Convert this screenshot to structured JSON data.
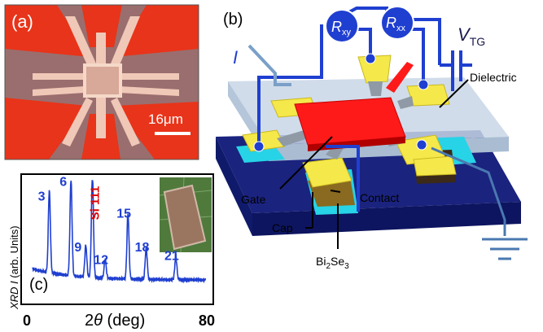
{
  "panel_a": {
    "label": "(a)",
    "scale_bar": "16μm"
  },
  "panel_b": {
    "label": "(b)",
    "meter_xy": {
      "main": "R",
      "sub": "xy"
    },
    "meter_xx": {
      "main": "R",
      "sub": "xx"
    },
    "current_label": "I",
    "vtg": {
      "main": "V",
      "sub": "TG"
    },
    "callouts": {
      "dielectric": "Dielectric",
      "gate": "Gate",
      "contact": "Contact",
      "cap": "Cap",
      "bi2se3": {
        "a": "Bi",
        "a_sub": "2",
        "b": "Se",
        "b_sub": "3"
      }
    },
    "colors": {
      "wire": "#1f3fd0",
      "gate": "#ff1a1a",
      "contact": "#f5e84a",
      "substrate": "#1a237e",
      "cap": "#27d3e6"
    }
  },
  "panel_c": {
    "label": "(c)",
    "chart_data": {
      "type": "line",
      "xlabel_prefix": "2",
      "xlabel_theta": "θ",
      "xlabel_unit": "(deg)",
      "ylabel_prefix": "XRD I",
      "ylabel_unit": "(arb. Units)",
      "x_tick_labels": [
        "0",
        "80"
      ],
      "xlim": [
        0,
        80
      ],
      "series_color": "#1f3fd0",
      "peaks": [
        {
          "label": "3",
          "x": 9.5,
          "h": 0.78
        },
        {
          "label": "6",
          "x": 19.0,
          "h": 0.92
        },
        {
          "label": "9",
          "x": 25.5,
          "h": 0.3
        },
        {
          "label": "Si 111",
          "x": 28.4,
          "h": 0.98,
          "color": "#e00000"
        },
        {
          "label": "12",
          "x": 34.0,
          "h": 0.18
        },
        {
          "label": "15",
          "x": 44.0,
          "h": 0.62
        },
        {
          "label": "18",
          "x": 52.0,
          "h": 0.3
        },
        {
          "label": "21",
          "x": 65.0,
          "h": 0.22
        }
      ]
    }
  }
}
